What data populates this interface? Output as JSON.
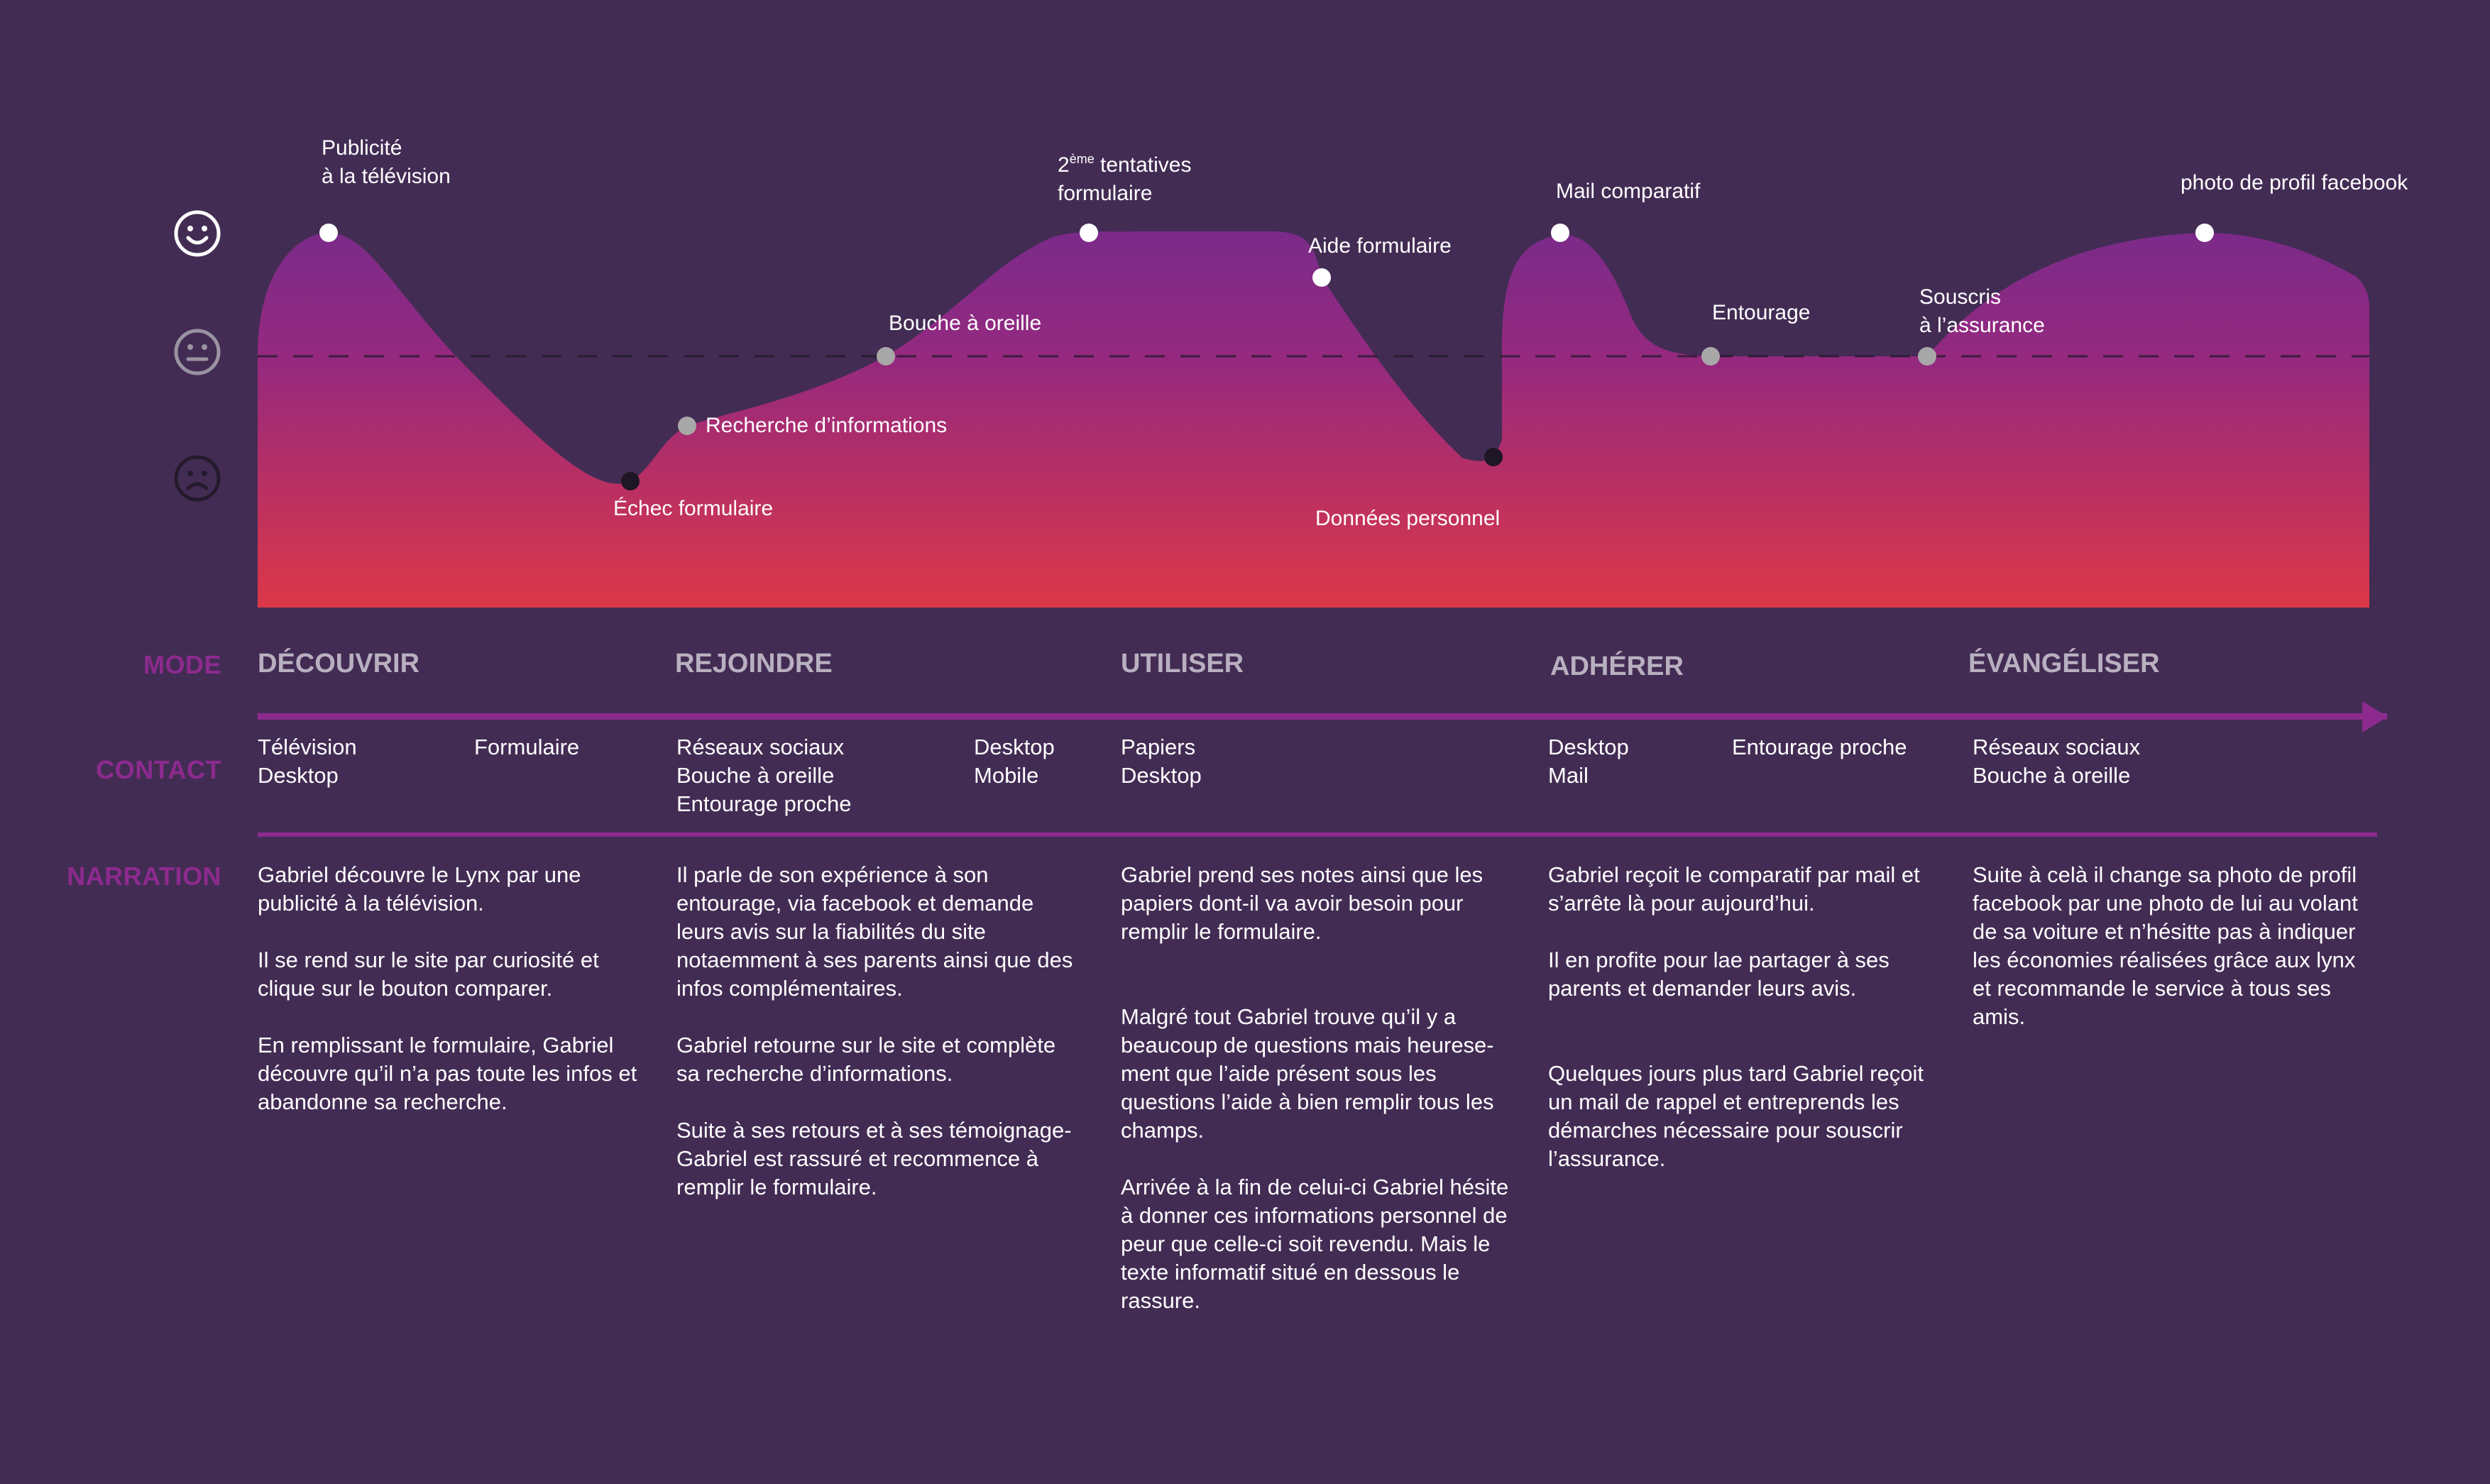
{
  "faces": {
    "happy": "happy-face-icon",
    "neutral": "neutral-face-icon",
    "sad": "sad-face-icon"
  },
  "colors": {
    "background": "#432c54",
    "accent": "#8d2a8e",
    "curve_top": "#8a2a86",
    "curve_bottom": "#d9364a"
  },
  "touchpoints": [
    {
      "id": "pub",
      "lines": [
        "Publicité",
        "à la télévision"
      ],
      "level": "happy",
      "color": "#ffffff"
    },
    {
      "id": "echec",
      "lines": [
        "Échec formulaire"
      ],
      "level": "sad",
      "color": "#1e1624"
    },
    {
      "id": "recherche",
      "lines": [
        "Recherche d’informations"
      ],
      "level": "between",
      "color": "#a8a8a8"
    },
    {
      "id": "bouche",
      "lines": [
        "Bouche à oreille"
      ],
      "level": "neutral",
      "color": "#a8a8a8"
    },
    {
      "id": "tentatives",
      "lines": [
        "2ème tentatives",
        "formulaire"
      ],
      "level": "happy",
      "color": "#ffffff"
    },
    {
      "id": "aide",
      "lines": [
        "Aide formulaire"
      ],
      "level": "happy",
      "color": "#ffffff"
    },
    {
      "id": "donnees",
      "lines": [
        "Données personnel"
      ],
      "level": "sad",
      "color": "#1e1624"
    },
    {
      "id": "mail",
      "lines": [
        "Mail comparatif"
      ],
      "level": "happy",
      "color": "#ffffff"
    },
    {
      "id": "entourage",
      "lines": [
        "Entourage"
      ],
      "level": "neutral",
      "color": "#a8a8a8"
    },
    {
      "id": "souscris",
      "lines": [
        "Souscris",
        "à l’assurance"
      ],
      "level": "neutral",
      "color": "#a8a8a8"
    },
    {
      "id": "photo",
      "lines": [
        "photo de profil facebook"
      ],
      "level": "happy",
      "color": "#ffffff"
    }
  ],
  "rows": {
    "mode": "MODE",
    "contact": "CONTACT",
    "narration": "NARRATION"
  },
  "modes": [
    "DÉCOUVRIR",
    "REJOINDRE",
    "UTILISER",
    "ADHÉRER",
    "ÉVANGÉLISER"
  ],
  "contacts": [
    "Télévision\nDesktop",
    "Formulaire",
    "Réseaux sociaux\nBouche à oreille\nEntourage proche",
    "Desktop\nMobile",
    "Papiers\nDesktop",
    "Desktop\nMail",
    "Entourage proche",
    "Réseaux sociaux\nBouche à oreille"
  ],
  "narrations": [
    "Gabriel découvre le Lynx par une\npublicité à la télévision.\n\nIl se rend sur le site par curiosité et\nclique sur le bouton comparer.\n\nEn remplissant le formulaire, Gabriel\ndécouvre qu’il n’a pas toute les infos et\nabandonne sa recherche.",
    "Il parle de son expérience à son\nentourage,  via facebook et demande\nleurs avis sur la fiabilités du site\nnotaemment à ses parents ainsi que des\ninfos complémentaires.\n\nGabriel retourne sur le site et complète\nsa recherche d’informations.\n\nSuite à ses retours et à ses témoignage-\nGabriel est rassuré et recommence à\nremplir le formulaire.",
    "Gabriel prend ses notes  ainsi que les\npapiers dont-il va avoir besoin pour\nremplir le formulaire.\n\n\nMalgré tout Gabriel trouve qu’il y a\nbeaucoup de questions mais heurese-\nment que l’aide présent sous les\nquestions l’aide à bien remplir tous les\nchamps.\n\nArrivée à la fin de celui-ci Gabriel hésite\nà donner ces informations personnel de\npeur que celle-ci soit revendu. Mais le\ntexte informatif situé en dessous le\nrassure.",
    "Gabriel reçoit le comparatif par mail et\ns’arrête là pour aujourd’hui.\n\nIl en profite pour lae partager à ses\nparents et demander leurs avis.\n\n\nQuelques jours plus tard Gabriel reçoit\nun mail de rappel et entreprends les\ndémarches nécessaire pour souscrir\nl’assurance.",
    "Suite à celà il change sa photo de profil\nfacebook par une photo de lui au volant\nde sa voiture et n’hésitte pas à indiquer\nles économies réalisées grâce aux lynx\net recommande le service à tous ses\namis."
  ]
}
